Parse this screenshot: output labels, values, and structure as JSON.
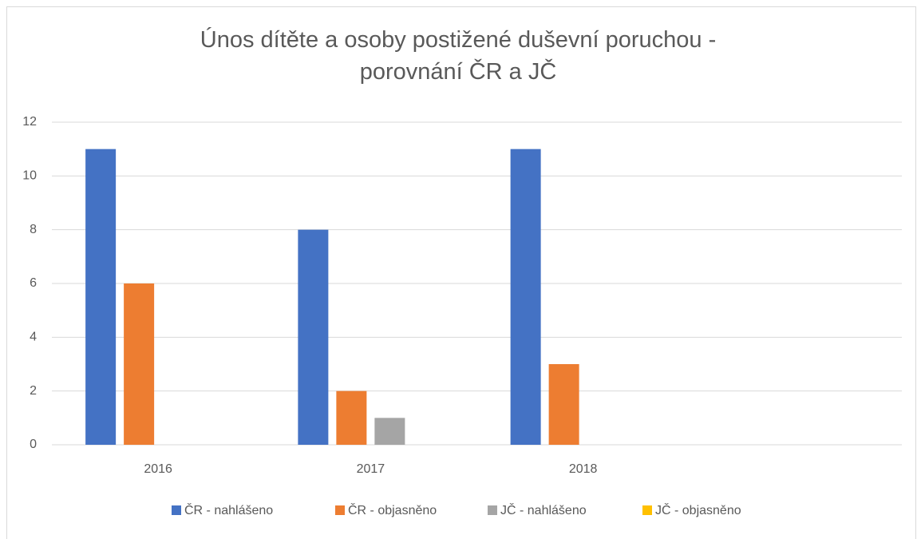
{
  "chart_data": {
    "type": "bar",
    "title": "Únos dítěte a osoby postižené duševní poruchou - porovnání ČR a JČ",
    "categories": [
      "2016",
      "2017",
      "2018",
      null
    ],
    "series": [
      {
        "name": "ČR - nahlášeno",
        "color": "#4472c4",
        "values": [
          11,
          8,
          11,
          null
        ]
      },
      {
        "name": "ČR - objasněno",
        "color": "#ed7d31",
        "values": [
          6,
          2,
          3,
          null
        ]
      },
      {
        "name": "JČ - nahlášeno",
        "color": "#a5a5a5",
        "values": [
          0,
          1,
          0,
          null
        ]
      },
      {
        "name": "JČ - objasněno",
        "color": "#ffc000",
        "values": [
          0,
          0,
          0,
          null
        ]
      }
    ],
    "ylim": [
      0,
      12
    ],
    "yticks": [
      0,
      2,
      4,
      6,
      8,
      10,
      12
    ],
    "grid": true,
    "legend": "bottom"
  }
}
